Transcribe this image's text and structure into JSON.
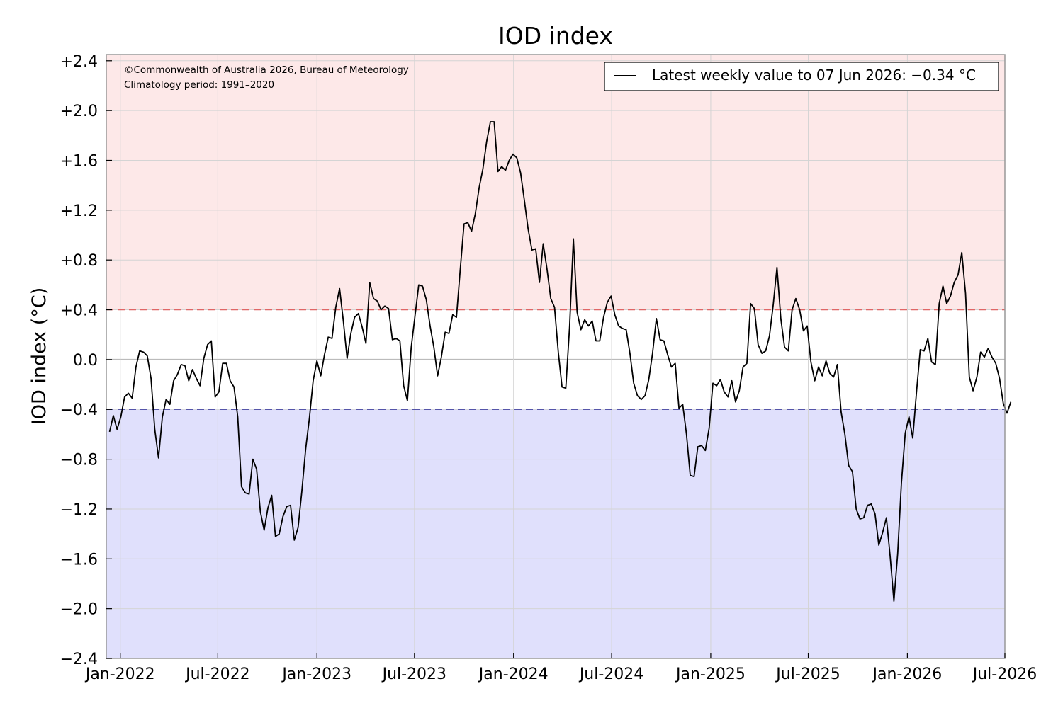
{
  "chart_data": {
    "type": "line",
    "title": "IOD index",
    "ylabel": "IOD index (°C)",
    "xlabel": "",
    "ylim": [
      -2.4,
      2.45
    ],
    "xlim": [
      "2021-12-06",
      "2026-07-01"
    ],
    "grid": true,
    "yticks": [
      {
        "value": 2.4,
        "label": "+2.4"
      },
      {
        "value": 2.0,
        "label": "+2.0"
      },
      {
        "value": 1.6,
        "label": "+1.6"
      },
      {
        "value": 1.2,
        "label": "+1.2"
      },
      {
        "value": 0.8,
        "label": "+0.8"
      },
      {
        "value": 0.4,
        "label": "+0.4"
      },
      {
        "value": 0.0,
        "label": "0.0"
      },
      {
        "value": -0.4,
        "label": "−0.4"
      },
      {
        "value": -0.8,
        "label": "−0.8"
      },
      {
        "value": -1.2,
        "label": "−1.2"
      },
      {
        "value": -1.6,
        "label": "−1.6"
      },
      {
        "value": -2.0,
        "label": "−2.0"
      },
      {
        "value": -2.4,
        "label": "−2.4"
      }
    ],
    "xticks": [
      {
        "date": "2022-01-01",
        "label": "Jan-2022"
      },
      {
        "date": "2022-07-01",
        "label": "Jul-2022"
      },
      {
        "date": "2023-01-01",
        "label": "Jan-2023"
      },
      {
        "date": "2023-07-01",
        "label": "Jul-2023"
      },
      {
        "date": "2024-01-01",
        "label": "Jan-2024"
      },
      {
        "date": "2024-07-01",
        "label": "Jul-2024"
      },
      {
        "date": "2025-01-01",
        "label": "Jan-2025"
      },
      {
        "date": "2025-07-01",
        "label": "Jul-2025"
      },
      {
        "date": "2026-01-01",
        "label": "Jan-2026"
      },
      {
        "date": "2026-07-01",
        "label": "Jul-2026"
      }
    ],
    "thresholds": [
      {
        "value": 0.4,
        "color": "#e06666"
      },
      {
        "value": -0.4,
        "color": "#5555aa"
      }
    ],
    "shading": {
      "positive_color": "#fde8e8",
      "negative_color": "#e0e0fc"
    },
    "series": [
      {
        "name": "Latest weekly value to 07 Jun 2026: −0.34 °C",
        "color": "#000000",
        "start_date": "2021-12-12",
        "interval_days": 7,
        "values": [
          -0.58,
          -0.45,
          -0.56,
          -0.46,
          -0.3,
          -0.27,
          -0.31,
          -0.06,
          0.07,
          0.06,
          0.03,
          -0.15,
          -0.56,
          -0.79,
          -0.46,
          -0.32,
          -0.36,
          -0.17,
          -0.12,
          -0.04,
          -0.05,
          -0.17,
          -0.08,
          -0.15,
          -0.21,
          0.01,
          0.12,
          0.15,
          -0.3,
          -0.26,
          -0.03,
          -0.03,
          -0.17,
          -0.22,
          -0.46,
          -1.02,
          -1.07,
          -1.08,
          -0.8,
          -0.88,
          -1.22,
          -1.37,
          -1.19,
          -1.09,
          -1.42,
          -1.4,
          -1.26,
          -1.18,
          -1.17,
          -1.45,
          -1.35,
          -1.06,
          -0.72,
          -0.47,
          -0.17,
          -0.01,
          -0.13,
          0.04,
          0.18,
          0.17,
          0.42,
          0.57,
          0.31,
          0.01,
          0.21,
          0.34,
          0.37,
          0.26,
          0.13,
          0.62,
          0.49,
          0.47,
          0.4,
          0.43,
          0.41,
          0.16,
          0.17,
          0.15,
          -0.21,
          -0.33,
          0.1,
          0.35,
          0.6,
          0.59,
          0.48,
          0.27,
          0.1,
          -0.13,
          0.02,
          0.22,
          0.21,
          0.36,
          0.34,
          0.72,
          1.09,
          1.1,
          1.03,
          1.17,
          1.38,
          1.53,
          1.75,
          1.91,
          1.91,
          1.51,
          1.55,
          1.52,
          1.6,
          1.65,
          1.62,
          1.5,
          1.28,
          1.05,
          0.88,
          0.89,
          0.62,
          0.93,
          0.73,
          0.49,
          0.42,
          0.06,
          -0.22,
          -0.23,
          0.27,
          0.97,
          0.38,
          0.24,
          0.32,
          0.27,
          0.31,
          0.15,
          0.15,
          0.34,
          0.46,
          0.51,
          0.36,
          0.27,
          0.25,
          0.24,
          0.05,
          -0.19,
          -0.29,
          -0.32,
          -0.29,
          -0.16,
          0.05,
          0.33,
          0.16,
          0.15,
          0.04,
          -0.06,
          -0.03,
          -0.39,
          -0.36,
          -0.6,
          -0.93,
          -0.94,
          -0.7,
          -0.69,
          -0.73,
          -0.55,
          -0.19,
          -0.21,
          -0.16,
          -0.26,
          -0.3,
          -0.17,
          -0.34,
          -0.25,
          -0.06,
          -0.03,
          0.45,
          0.41,
          0.12,
          0.05,
          0.07,
          0.19,
          0.44,
          0.74,
          0.33,
          0.1,
          0.07,
          0.4,
          0.49,
          0.4,
          0.23,
          0.27,
          -0.02,
          -0.17,
          -0.06,
          -0.13,
          -0.01,
          -0.11,
          -0.14,
          -0.04,
          -0.42,
          -0.6,
          -0.85,
          -0.9,
          -1.2,
          -1.28,
          -1.27,
          -1.17,
          -1.16,
          -1.24,
          -1.49,
          -1.39,
          -1.27,
          -1.58,
          -1.94,
          -1.56,
          -0.99,
          -0.59,
          -0.46,
          -0.63,
          -0.26,
          0.08,
          0.07,
          0.17,
          -0.02,
          -0.04,
          0.45,
          0.59,
          0.45,
          0.51,
          0.62,
          0.68,
          0.86,
          0.53,
          -0.14,
          -0.25,
          -0.14,
          0.06,
          0.02,
          0.09,
          0.02,
          -0.03,
          -0.15,
          -0.35,
          -0.43,
          -0.34
        ]
      }
    ]
  },
  "annotations": {
    "copyright": "©Commonwealth of Australia 2026, Bureau of Meteorology",
    "climatology": "Climatology period: 1991–2020"
  },
  "legend": {
    "placement": "top-right",
    "label": "Latest weekly value to 07 Jun 2026: −0.34 °C"
  }
}
